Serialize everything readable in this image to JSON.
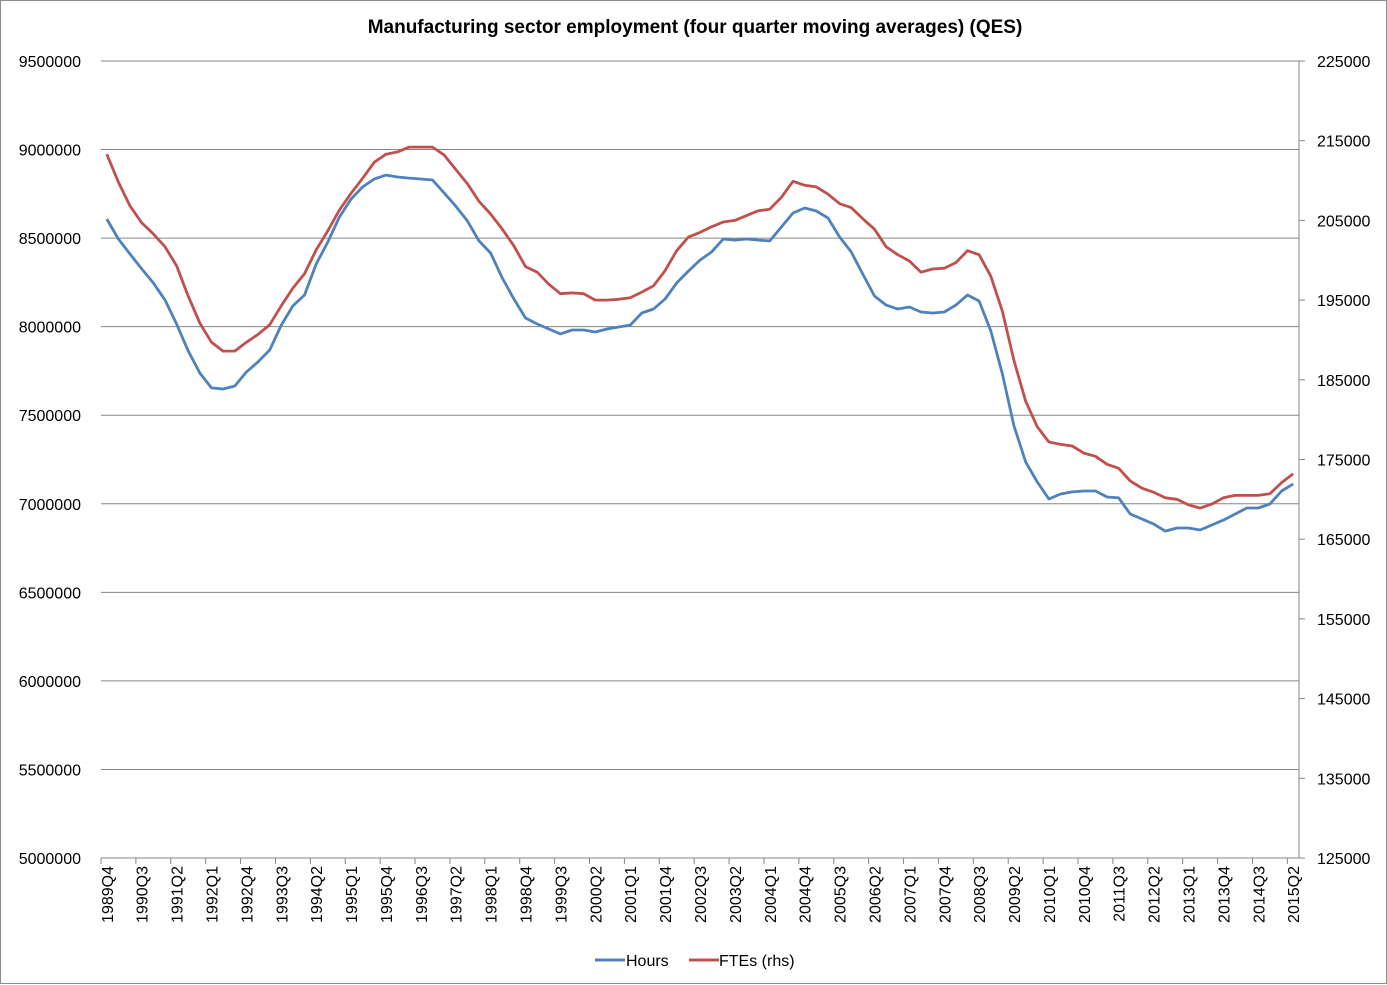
{
  "chart_data": {
    "type": "line",
    "title": "Manufacturing sector employment (four quarter moving averages)  (QES)",
    "xlabel": "",
    "ylabel": "",
    "ylim": [
      5000000,
      9500000
    ],
    "ylim_right": [
      125000,
      225000
    ],
    "yticks": [
      "5000000",
      "5500000",
      "6000000",
      "6500000",
      "7000000",
      "7500000",
      "8000000",
      "8500000",
      "9000000",
      "9500000"
    ],
    "yticks_right": [
      "125000",
      "135000",
      "145000",
      "155000",
      "165000",
      "175000",
      "185000",
      "195000",
      "205000",
      "215000",
      "225000"
    ],
    "grid": true,
    "legend_position": "bottom",
    "x_tick_every": 3,
    "categories": [
      "1989Q4",
      "1990Q1",
      "1990Q2",
      "1990Q3",
      "1990Q4",
      "1991Q1",
      "1991Q2",
      "1991Q3",
      "1991Q4",
      "1992Q1",
      "1992Q2",
      "1992Q3",
      "1992Q4",
      "1993Q1",
      "1993Q2",
      "1993Q3",
      "1993Q4",
      "1994Q1",
      "1994Q2",
      "1994Q3",
      "1994Q4",
      "1995Q1",
      "1995Q2",
      "1995Q3",
      "1995Q4",
      "1996Q1",
      "1996Q2",
      "1996Q3",
      "1996Q4",
      "1997Q1",
      "1997Q2",
      "1997Q3",
      "1997Q4",
      "1998Q1",
      "1998Q2",
      "1998Q3",
      "1998Q4",
      "1999Q1",
      "1999Q2",
      "1999Q3",
      "1999Q4",
      "2000Q1",
      "2000Q2",
      "2000Q3",
      "2000Q4",
      "2001Q1",
      "2001Q2",
      "2001Q3",
      "2001Q4",
      "2002Q1",
      "2002Q2",
      "2002Q3",
      "2002Q4",
      "2003Q1",
      "2003Q2",
      "2003Q3",
      "2003Q4",
      "2004Q1",
      "2004Q2",
      "2004Q3",
      "2004Q4",
      "2005Q1",
      "2005Q2",
      "2005Q3",
      "2005Q4",
      "2006Q1",
      "2006Q2",
      "2006Q3",
      "2006Q4",
      "2007Q1",
      "2007Q2",
      "2007Q3",
      "2007Q4",
      "2008Q1",
      "2008Q2",
      "2008Q3",
      "2008Q4",
      "2009Q1",
      "2009Q2",
      "2009Q3",
      "2009Q4",
      "2010Q1",
      "2010Q2",
      "2010Q3",
      "2010Q4",
      "2011Q1",
      "2011Q2",
      "2011Q3",
      "2011Q4",
      "2012Q1",
      "2012Q2",
      "2012Q3",
      "2012Q4",
      "2013Q1",
      "2013Q2",
      "2013Q3",
      "2013Q4",
      "2014Q1",
      "2014Q2",
      "2014Q3",
      "2014Q4",
      "2015Q1",
      "2015Q2"
    ],
    "series": [
      {
        "name": "Hours",
        "axis": "left",
        "color": "#4F81BD",
        "values": [
          8608000,
          8495000,
          8410000,
          8326000,
          8247000,
          8151000,
          8015000,
          7863000,
          7738000,
          7654000,
          7648000,
          7665000,
          7744000,
          7801000,
          7868000,
          8009000,
          8117000,
          8179000,
          8354000,
          8478000,
          8619000,
          8721000,
          8789000,
          8834000,
          8856000,
          8845000,
          8839000,
          8834000,
          8828000,
          8755000,
          8681000,
          8597000,
          8484000,
          8416000,
          8275000,
          8156000,
          8049000,
          8015000,
          7987000,
          7959000,
          7981000,
          7981000,
          7970000,
          7987000,
          7998000,
          8009000,
          8077000,
          8100000,
          8156000,
          8247000,
          8314000,
          8376000,
          8422000,
          8495000,
          8489000,
          8495000,
          8489000,
          8484000,
          8563000,
          8642000,
          8670000,
          8653000,
          8614000,
          8506000,
          8422000,
          8297000,
          8173000,
          8122000,
          8100000,
          8111000,
          8083000,
          8077000,
          8083000,
          8122000,
          8179000,
          8145000,
          7976000,
          7733000,
          7439000,
          7236000,
          7123000,
          7027000,
          7055000,
          7067000,
          7072000,
          7072000,
          7038000,
          7033000,
          6942000,
          6914000,
          6886000,
          6846000,
          6863000,
          6863000,
          6852000,
          6880000,
          6908000,
          6942000,
          6976000,
          6976000,
          6999000,
          7072000,
          7112000
        ]
      },
      {
        "name": "FTEs (rhs)",
        "axis": "right",
        "color": "#C0504D",
        "values": [
          213300,
          209800,
          206800,
          204700,
          203300,
          201700,
          199300,
          195500,
          192100,
          189700,
          188600,
          188600,
          189700,
          190700,
          191900,
          194300,
          196500,
          198300,
          201300,
          203700,
          206300,
          208400,
          210300,
          212300,
          213300,
          213600,
          214200,
          214200,
          214200,
          213200,
          211400,
          209600,
          207400,
          205800,
          203900,
          201800,
          199200,
          198500,
          197000,
          195800,
          195900,
          195800,
          195000,
          195000,
          195100,
          195300,
          196000,
          196800,
          198700,
          201200,
          202900,
          203500,
          204200,
          204800,
          205000,
          205600,
          206200,
          206400,
          207900,
          209900,
          209400,
          209200,
          208300,
          207100,
          206600,
          205200,
          203900,
          201700,
          200700,
          199900,
          198500,
          198900,
          199000,
          199700,
          201200,
          200700,
          198000,
          193600,
          187400,
          182300,
          179100,
          177200,
          176900,
          176700,
          175800,
          175400,
          174400,
          173900,
          172300,
          171400,
          170900,
          170200,
          170000,
          169300,
          168900,
          169400,
          170200,
          170500,
          170500,
          170500,
          170700,
          172100,
          173200
        ]
      }
    ]
  }
}
